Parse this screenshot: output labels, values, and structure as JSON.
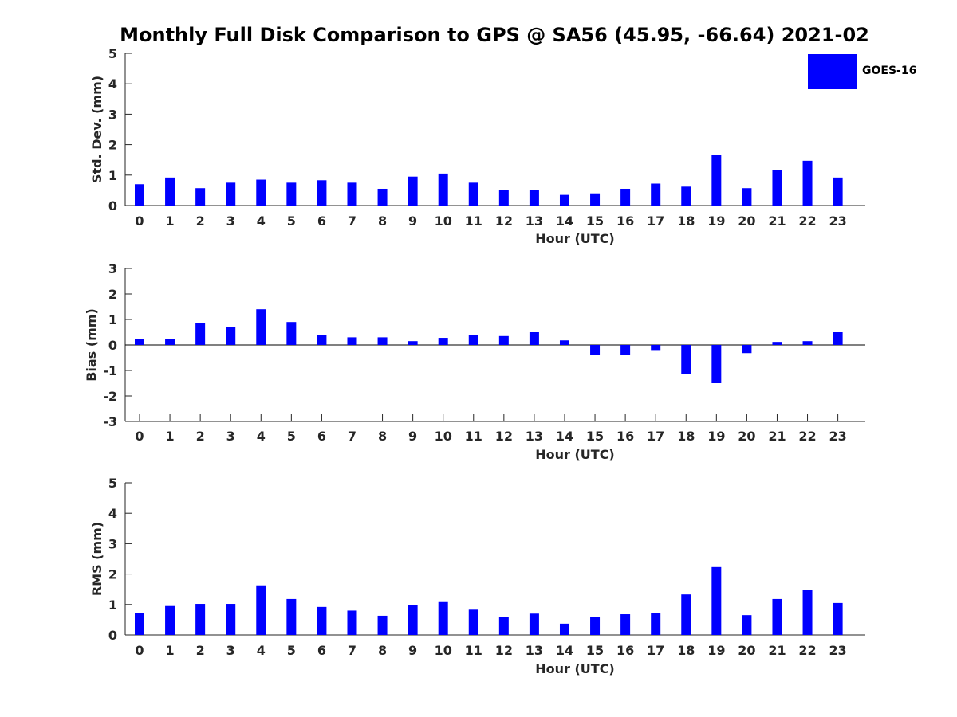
{
  "figure": {
    "title": "Monthly Full Disk Comparison to GPS @ SA56 (45.95, -66.64) 2021-02"
  },
  "legend": {
    "label": "GOES-16",
    "color": "#0000ff"
  },
  "colors": {
    "bar": "#0000ff",
    "axis": "#262626"
  },
  "chart_data": [
    {
      "type": "bar",
      "title": "",
      "ylabel": "Std. Dev. (mm)",
      "xlabel": "Hour (UTC)",
      "categories": [
        "0",
        "1",
        "2",
        "3",
        "4",
        "5",
        "6",
        "7",
        "8",
        "9",
        "10",
        "11",
        "12",
        "13",
        "14",
        "15",
        "16",
        "17",
        "18",
        "19",
        "20",
        "21",
        "22",
        "23"
      ],
      "values": [
        0.7,
        0.92,
        0.57,
        0.75,
        0.85,
        0.75,
        0.83,
        0.75,
        0.55,
        0.95,
        1.05,
        0.75,
        0.5,
        0.5,
        0.35,
        0.4,
        0.55,
        0.72,
        0.62,
        1.65,
        0.57,
        1.17,
        1.47,
        0.92
      ],
      "ylim": [
        0,
        5
      ],
      "yticks": [
        0,
        1,
        2,
        3,
        4,
        5
      ],
      "series_name": "GOES-16"
    },
    {
      "type": "bar",
      "title": "",
      "ylabel": "Bias (mm)",
      "xlabel": "Hour (UTC)",
      "categories": [
        "0",
        "1",
        "2",
        "3",
        "4",
        "5",
        "6",
        "7",
        "8",
        "9",
        "10",
        "11",
        "12",
        "13",
        "14",
        "15",
        "16",
        "17",
        "18",
        "19",
        "20",
        "21",
        "22",
        "23"
      ],
      "values": [
        0.25,
        0.25,
        0.85,
        0.7,
        1.4,
        0.9,
        0.4,
        0.3,
        0.3,
        0.15,
        0.28,
        0.4,
        0.35,
        0.5,
        0.18,
        -0.4,
        -0.4,
        -0.2,
        -1.15,
        -1.5,
        -0.32,
        0.12,
        0.15,
        0.5
      ],
      "ylim": [
        -3,
        3
      ],
      "yticks": [
        -3,
        -2,
        -1,
        0,
        1,
        2,
        3
      ],
      "series_name": "GOES-16"
    },
    {
      "type": "bar",
      "title": "",
      "ylabel": "RMS (mm)",
      "xlabel": "Hour (UTC)",
      "categories": [
        "0",
        "1",
        "2",
        "3",
        "4",
        "5",
        "6",
        "7",
        "8",
        "9",
        "10",
        "11",
        "12",
        "13",
        "14",
        "15",
        "16",
        "17",
        "18",
        "19",
        "20",
        "21",
        "22",
        "23"
      ],
      "values": [
        0.73,
        0.95,
        1.02,
        1.02,
        1.63,
        1.18,
        0.92,
        0.8,
        0.63,
        0.97,
        1.08,
        0.83,
        0.58,
        0.7,
        0.37,
        0.58,
        0.68,
        0.73,
        1.33,
        2.23,
        0.65,
        1.18,
        1.48,
        1.05
      ],
      "ylim": [
        0,
        5
      ],
      "yticks": [
        0,
        1,
        2,
        3,
        4,
        5
      ],
      "series_name": "GOES-16"
    }
  ]
}
